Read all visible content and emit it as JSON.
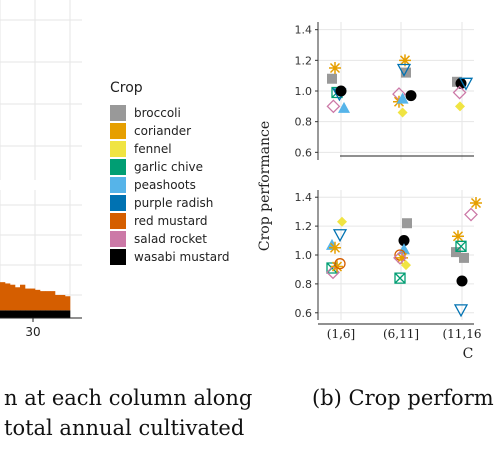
{
  "left_caption_lines": [
    "n at each column along",
    "total annual cultivated"
  ],
  "right_caption": "(b) Crop perform",
  "legend": {
    "title": "Crop",
    "items": [
      {
        "label": "broccoli",
        "color": "#999999"
      },
      {
        "label": "coriander",
        "color": "#E69F00"
      },
      {
        "label": "fennel",
        "color": "#F0E442"
      },
      {
        "label": "garlic chive",
        "color": "#009E73"
      },
      {
        "label": "peashoots",
        "color": "#56B4E9"
      },
      {
        "label": "purple radish",
        "color": "#0072B2"
      },
      {
        "label": "red mustard",
        "color": "#D55E00"
      },
      {
        "label": "salad rocket",
        "color": "#CC79A7"
      },
      {
        "label": "wasabi mustard",
        "color": "#000000"
      }
    ]
  },
  "chart_data": [
    {
      "type": "bar",
      "stacked": true,
      "x_tick_labels": [
        "30"
      ],
      "series": [
        {
          "name": "red mustard",
          "values": [
            0.22,
            0.21,
            0.2,
            0.18,
            0.2,
            0.17,
            0.17,
            0.16,
            0.15,
            0.15,
            0.15,
            0.12,
            0.12,
            0.11
          ]
        },
        {
          "name": "wasabi mustard",
          "values": [
            0.06,
            0.06,
            0.06,
            0.06,
            0.06,
            0.06,
            0.06,
            0.06,
            0.06,
            0.06,
            0.06,
            0.06,
            0.06,
            0.06
          ]
        }
      ]
    },
    {
      "type": "scatter",
      "panel": "top",
      "ylabel": "Crop performance",
      "yticks": [
        0.6,
        0.8,
        1.0,
        1.2,
        1.4
      ],
      "ylim": [
        0.55,
        1.45
      ],
      "categories": [
        "(1,6]",
        "(6,11]",
        "(11,16"
      ],
      "points": [
        {
          "crop": "broccoli",
          "cat": 0,
          "dx": -0.45,
          "y": 1.08
        },
        {
          "crop": "coriander",
          "cat": 0,
          "dx": -0.3,
          "y": 1.15
        },
        {
          "crop": "salad rocket",
          "cat": 0,
          "dx": -0.38,
          "y": 0.9
        },
        {
          "crop": "garlic chive",
          "cat": 0,
          "dx": -0.2,
          "y": 0.99
        },
        {
          "crop": "purple radish",
          "cat": 0,
          "dx": -0.08,
          "y": 0.98
        },
        {
          "crop": "wasabi mustard",
          "cat": 0,
          "dx": 0.0,
          "y": 1.0
        },
        {
          "crop": "peashoots",
          "cat": 0,
          "dx": 0.15,
          "y": 0.89
        },
        {
          "crop": "broccoli",
          "cat": 1,
          "dx": 0.25,
          "y": 1.12
        },
        {
          "crop": "coriander",
          "cat": 1,
          "dx": 0.2,
          "y": 1.2
        },
        {
          "crop": "salad rocket",
          "cat": 1,
          "dx": -0.1,
          "y": 0.98
        },
        {
          "crop": "coriander",
          "cat": 1,
          "dx": -0.1,
          "y": 0.93
        },
        {
          "crop": "fennel",
          "cat": 1,
          "dx": 0.08,
          "y": 0.86
        },
        {
          "crop": "peashoots",
          "cat": 1,
          "dx": 0.08,
          "y": 0.95
        },
        {
          "crop": "purple radish",
          "cat": 1,
          "dx": 0.15,
          "y": 1.14
        },
        {
          "crop": "wasabi mustard",
          "cat": 1,
          "dx": 0.5,
          "y": 0.97
        },
        {
          "crop": "broccoli",
          "cat": 2,
          "dx": -0.25,
          "y": 1.06
        },
        {
          "crop": "wasabi mustard",
          "cat": 2,
          "dx": -0.05,
          "y": 1.05
        },
        {
          "crop": "salad rocket",
          "cat": 2,
          "dx": -0.12,
          "y": 0.99
        },
        {
          "crop": "fennel",
          "cat": 2,
          "dx": -0.1,
          "y": 0.9
        },
        {
          "crop": "purple radish",
          "cat": 2,
          "dx": 0.2,
          "y": 1.05
        }
      ]
    },
    {
      "type": "scatter",
      "panel": "bottom",
      "yticks": [
        0.6,
        0.8,
        1.0,
        1.2,
        1.4
      ],
      "ylim": [
        0.55,
        1.45
      ],
      "categories": [
        "(1,6]",
        "(6,11]",
        "(11,16"
      ],
      "xlabel": "C",
      "points": [
        {
          "crop": "peashoots",
          "cat": 0,
          "dx": -0.45,
          "y": 1.07
        },
        {
          "crop": "coriander",
          "cat": 0,
          "dx": -0.3,
          "y": 1.05
        },
        {
          "crop": "purple radish",
          "cat": 0,
          "dx": -0.05,
          "y": 1.14
        },
        {
          "crop": "fennel",
          "cat": 0,
          "dx": 0.05,
          "y": 1.23
        },
        {
          "crop": "garlic chive",
          "cat": 0,
          "dx": -0.45,
          "y": 0.91
        },
        {
          "crop": "salad rocket",
          "cat": 0,
          "dx": -0.4,
          "y": 0.88
        },
        {
          "crop": "coriander",
          "cat": 0,
          "dx": -0.2,
          "y": 0.92
        },
        {
          "crop": "red mustard",
          "cat": 0,
          "dx": -0.05,
          "y": 0.94
        },
        {
          "crop": "broccoli",
          "cat": 1,
          "dx": 0.3,
          "y": 1.22
        },
        {
          "crop": "wasabi mustard",
          "cat": 1,
          "dx": 0.15,
          "y": 1.1
        },
        {
          "crop": "peashoots",
          "cat": 1,
          "dx": 0.15,
          "y": 1.04
        },
        {
          "crop": "red mustard",
          "cat": 1,
          "dx": -0.05,
          "y": 1.0
        },
        {
          "crop": "coriander",
          "cat": 1,
          "dx": 0.05,
          "y": 0.98
        },
        {
          "crop": "salad rocket",
          "cat": 1,
          "dx": -0.05,
          "y": 0.98
        },
        {
          "crop": "fennel",
          "cat": 1,
          "dx": 0.25,
          "y": 0.93
        },
        {
          "crop": "garlic chive",
          "cat": 1,
          "dx": -0.05,
          "y": 0.84
        },
        {
          "crop": "coriander",
          "cat": 2,
          "dx": -0.2,
          "y": 1.13
        },
        {
          "crop": "broccoli",
          "cat": 2,
          "dx": -0.3,
          "y": 1.02
        },
        {
          "crop": "garlic chive",
          "cat": 2,
          "dx": -0.05,
          "y": 1.06
        },
        {
          "crop": "wasabi mustard",
          "cat": 2,
          "dx": 0.0,
          "y": 0.82
        },
        {
          "crop": "purple radish",
          "cat": 2,
          "dx": -0.05,
          "y": 0.62
        },
        {
          "crop": "salad rocket",
          "cat": 2,
          "dx": 0.45,
          "y": 1.28
        },
        {
          "crop": "coriander",
          "cat": 2,
          "dx": 0.7,
          "y": 1.36
        },
        {
          "crop": "broccoli",
          "cat": 2,
          "dx": 0.1,
          "y": 0.98
        }
      ]
    }
  ]
}
